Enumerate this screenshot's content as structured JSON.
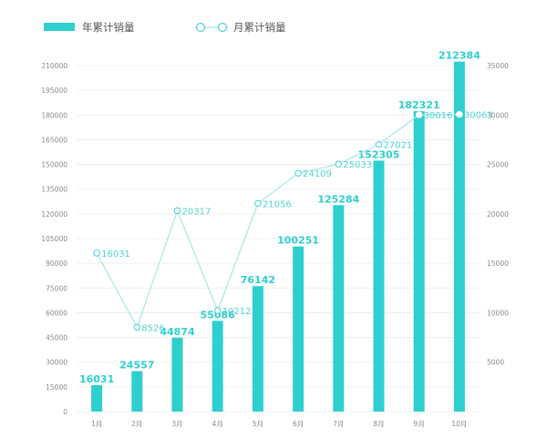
{
  "chart_data": {
    "type": "bar",
    "categories": [
      "1月",
      "2月",
      "3月",
      "4月",
      "5月",
      "6月",
      "7月",
      "8月",
      "9月",
      "10月"
    ],
    "series": [
      {
        "name": "年累计销量",
        "type": "bar",
        "axis": "left",
        "values": [
          16031,
          24557,
          44874,
          55086,
          76142,
          100251,
          125284,
          152305,
          182321,
          212384
        ],
        "labels": [
          "16031",
          "24557",
          "44874",
          "55086",
          "76142",
          "100251",
          "125284",
          "152305",
          "182321",
          "212384"
        ]
      },
      {
        "name": "月累计销量",
        "type": "line",
        "axis": "right",
        "values": [
          16031,
          8526,
          20317,
          10212,
          21056,
          24109,
          25033,
          27021,
          30016,
          30063
        ],
        "labels": [
          "16031",
          "8526",
          "20317",
          "10212",
          "21056",
          "24109",
          "25033",
          "27021",
          "30016",
          "30063"
        ]
      }
    ],
    "ylim_left": [
      0,
      210000
    ],
    "yticks_left": [
      "0",
      "15000",
      "30000",
      "45000",
      "60000",
      "75000",
      "90000",
      "105000",
      "120000",
      "135000",
      "150000",
      "165000",
      "180000",
      "195000",
      "210000"
    ],
    "ylim_right": [
      0,
      35000
    ],
    "yticks_right": [
      "5000",
      "10000",
      "15000",
      "20000",
      "25000",
      "30000",
      "35000"
    ],
    "grid": true,
    "legend_position": "top-left",
    "colors": {
      "bar": "#2ecfcf",
      "line": "#a8e6e6",
      "marker_stroke": "#4fd3d3",
      "label_bar": "#2ecfcf",
      "label_line": "#4fd3d3",
      "grid": "#ececec"
    }
  },
  "legend": {
    "bar_label": "年累计销量",
    "line_label": "月累计销量"
  }
}
